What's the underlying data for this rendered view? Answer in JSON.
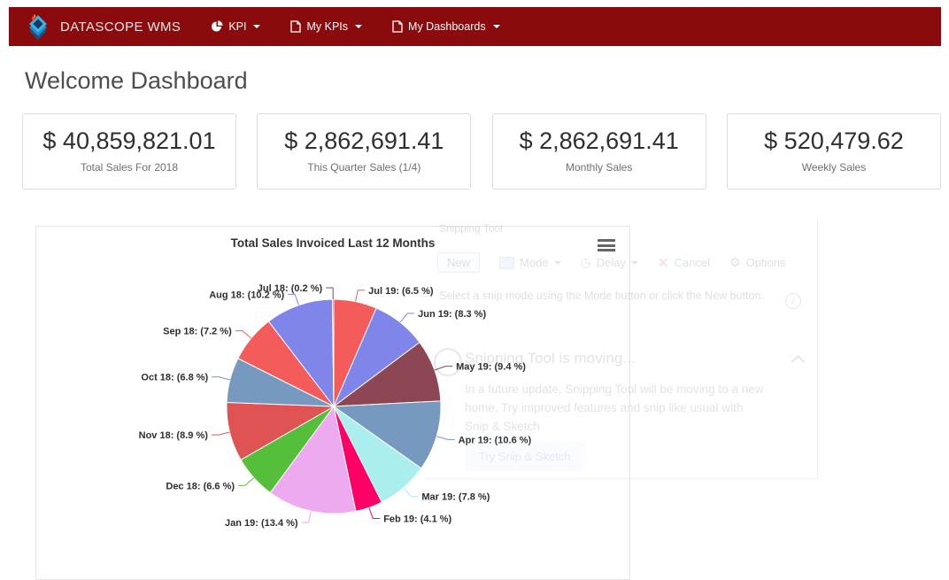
{
  "navbar": {
    "brand": "DATASCOPE WMS",
    "items": [
      {
        "label": "KPI",
        "icon": "pie-chart-icon"
      },
      {
        "label": "My KPIs",
        "icon": "document-icon"
      },
      {
        "label": "My Dashboards",
        "icon": "document-icon"
      }
    ],
    "background_color": "#8a0b0e"
  },
  "page": {
    "title": "Welcome Dashboard"
  },
  "stats": [
    {
      "value": "$ 40,859,821.01",
      "label": "Total Sales For 2018"
    },
    {
      "value": "$ 2,862,691.41",
      "label": "This Quarter Sales (1/4)"
    },
    {
      "value": "$ 2,862,691.41",
      "label": "Monthly Sales"
    },
    {
      "value": "$ 520,479.62",
      "label": "Weekly Sales"
    }
  ],
  "chart_data": {
    "type": "pie",
    "title": "Total Sales Invoiced Last 12 Months",
    "unit": "%",
    "label_format": "{label}: ({value} %)",
    "start_angle_deg": 0,
    "direction": "clockwise",
    "slices": [
      {
        "label": "Jul 19",
        "value": 6.5,
        "color": "#f45b5b"
      },
      {
        "label": "Jun 19",
        "value": 8.3,
        "color": "#8085e9"
      },
      {
        "label": "May 19",
        "value": 9.4,
        "color": "#8d4654"
      },
      {
        "label": "Apr 19",
        "value": 10.6,
        "color": "#7798bf"
      },
      {
        "label": "Mar 19",
        "value": 7.8,
        "color": "#aaeeee"
      },
      {
        "label": "Feb 19",
        "value": 4.1,
        "color": "#ff0066"
      },
      {
        "label": "Jan 19",
        "value": 13.4,
        "color": "#eeaaee"
      },
      {
        "label": "Dec 18",
        "value": 6.6,
        "color": "#55bf3b"
      },
      {
        "label": "Nov 18",
        "value": 8.9,
        "color": "#df5353"
      },
      {
        "label": "Oct 18",
        "value": 6.8,
        "color": "#7798bf"
      },
      {
        "label": "Sep 18",
        "value": 7.2,
        "color": "#f45b5b"
      },
      {
        "label": "Aug 18",
        "value": 10.2,
        "color": "#8085e9"
      },
      {
        "label": "Jul 18",
        "value": 0.2,
        "color": "#8d4654"
      }
    ],
    "menu_icon": "hamburger-icon"
  },
  "ghost_overlay": {
    "window_title": "Snipping Tool",
    "toolbar": {
      "new": "New",
      "mode": "Mode",
      "delay": "Delay",
      "cancel": "Cancel",
      "options": "Options",
      "cancel_glyph": "✕",
      "options_glyph": "⚙",
      "delay_glyph": "◷",
      "info_glyph": "i"
    },
    "hint": "Select a snip mode using the Mode button or click the New button.",
    "notice": {
      "title": "Snipping Tool is moving...",
      "body": "In a future update, Snipping Tool will be moving to a new home. Try improved features and snip like usual with Snip & Sketch",
      "button": "Try Snip & Sketch"
    }
  }
}
